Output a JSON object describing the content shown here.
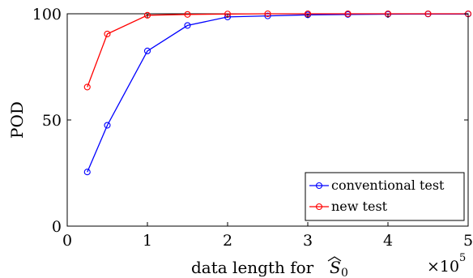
{
  "chart_data": {
    "type": "line",
    "title": "",
    "xlabel_prefix": "data length for ",
    "xlabel_symbol_base": "S",
    "xlabel_symbol_subscript": "0",
    "ylabel": "POD",
    "x_exponent_base": "×10",
    "x_exponent_power": "5",
    "xlim": [
      0,
      5
    ],
    "ylim": [
      0,
      100
    ],
    "xticks": [
      0,
      1,
      2,
      3,
      4,
      5
    ],
    "yticks": [
      0,
      50,
      100
    ],
    "grid": false,
    "legend_position": "bottom-right",
    "x": [
      0.25,
      0.5,
      1,
      1.5,
      2,
      2.5,
      3,
      3.5,
      4,
      4.5,
      5
    ],
    "series": [
      {
        "name": "conventional test",
        "color": "#0000ff",
        "marker": "circle",
        "values": [
          25.5,
          47.5,
          82.5,
          94.5,
          98.5,
          99,
          99.5,
          99.7,
          99.8,
          99.9,
          99.9
        ]
      },
      {
        "name": "new test",
        "color": "#ff0000",
        "marker": "circle",
        "values": [
          65.5,
          90.5,
          99.3,
          99.7,
          99.9,
          100,
          100,
          100,
          100,
          100,
          100
        ]
      }
    ]
  }
}
